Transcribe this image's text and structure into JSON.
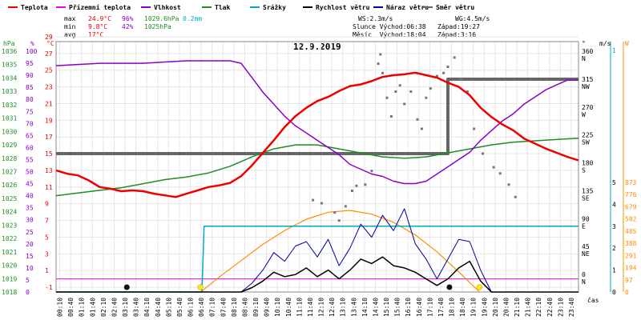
{
  "chart_data": {
    "type": "line",
    "title": "12.9.2019",
    "xlabel": "čas",
    "legend": [
      {
        "name": "Teplota",
        "color": "#ee0000"
      },
      {
        "name": "Přízemní teplota",
        "color": "#ee00ee"
      },
      {
        "name": "Vlhkost",
        "color": "#8a00c8"
      },
      {
        "name": "Tlak",
        "color": "#228b22"
      },
      {
        "name": "Srážky",
        "color": "#00a8c8"
      },
      {
        "name": "Rychlost větru",
        "color": "#000000"
      },
      {
        "name": "Náraz větru",
        "color": "#0000a0"
      },
      {
        "name": "Směr větru",
        "color": "#666666"
      }
    ],
    "stats": {
      "row1": [
        "max",
        "24.9°C",
        "96%",
        "1029.6hPa",
        "0.2mm"
      ],
      "row2": [
        "min",
        "9.8°C",
        "42%",
        "1025hPa"
      ],
      "row3": [
        "avg",
        "17°C"
      ]
    },
    "info": {
      "ws": "WS:2.3m/s",
      "wg": "WG:4.5m/s",
      "sun": "Slunce Východ:06:38   Západ:19:27",
      "moon": "Měsíc  Východ:18:04   Západ:3:16"
    },
    "axis_units": {
      "hpa": "hPa",
      "pct": "%",
      "degc": "°C",
      "deg": "°",
      "ms": "m/s",
      "wm2": "W"
    },
    "axes": {
      "hpa": [
        1018,
        1019,
        1020,
        1021,
        1022,
        1023,
        1024,
        1025,
        1026,
        1027,
        1028,
        1029,
        1030,
        1031,
        1032,
        1033,
        1034,
        1035,
        1036
      ],
      "pct": [
        0,
        5,
        10,
        15,
        20,
        25,
        30,
        35,
        40,
        45,
        50,
        55,
        60,
        65,
        70,
        75,
        80,
        85,
        90,
        95,
        100
      ],
      "degc": [
        -1,
        1,
        3,
        5,
        7,
        9,
        11,
        13,
        15,
        17,
        19,
        21,
        23,
        25,
        27,
        29
      ],
      "deg": [
        "0 N",
        "45 NE",
        "90 E",
        "135 SE",
        "180 S",
        "225 SW",
        "270 W",
        "315 NW",
        "360 N"
      ],
      "ms": [
        0,
        1,
        2,
        3,
        4,
        5
      ],
      "ms_top": "1",
      "wm2": [
        0,
        97,
        194,
        291,
        388,
        485,
        582,
        679,
        776,
        873
      ]
    },
    "x_ticks": [
      "00:10",
      "00:40",
      "01:10",
      "01:40",
      "02:10",
      "02:40",
      "03:10",
      "03:40",
      "04:10",
      "04:40",
      "05:10",
      "05:40",
      "06:10",
      "06:40",
      "07:10",
      "07:40",
      "08:10",
      "08:40",
      "09:10",
      "09:40",
      "10:10",
      "10:40",
      "11:10",
      "11:40",
      "12:10",
      "12:40",
      "13:10",
      "13:40",
      "14:10",
      "14:40",
      "15:10",
      "15:40",
      "16:10",
      "16:40",
      "17:10",
      "17:40",
      "18:10",
      "18:40",
      "19:10",
      "19:40",
      "20:10",
      "20:40",
      "21:10",
      "21:40",
      "22:10",
      "22:40",
      "23:10",
      "23:40"
    ],
    "series": {
      "temperature": {
        "x": [
          0,
          0.5,
          1,
          1.5,
          2,
          2.5,
          3,
          3.5,
          4,
          4.5,
          5,
          5.5,
          6,
          6.5,
          7,
          7.5,
          8,
          8.5,
          9,
          9.5,
          10,
          10.5,
          11,
          11.5,
          12,
          12.5,
          13,
          13.5,
          14,
          14.5,
          15,
          15.5,
          16,
          16.5,
          17,
          17.5,
          18,
          18.5,
          19,
          19.5,
          20,
          20.5,
          21,
          21.5,
          22,
          22.5,
          23,
          23.5,
          24
        ],
        "y": [
          13.0,
          12.6,
          12.4,
          11.8,
          11.0,
          10.8,
          10.5,
          10.6,
          10.5,
          10.2,
          10.0,
          9.8,
          10.2,
          10.6,
          11.0,
          11.2,
          11.5,
          12.3,
          13.6,
          15.1,
          16.6,
          18.2,
          19.5,
          20.5,
          21.3,
          21.8,
          22.5,
          23.1,
          23.3,
          23.7,
          24.2,
          24.4,
          24.5,
          24.7,
          24.4,
          24.1,
          23.5,
          23.0,
          22.0,
          20.5,
          19.4,
          18.5,
          17.8,
          16.8,
          16.2,
          15.6,
          15.1,
          14.6,
          14.2
        ]
      },
      "humidity": {
        "x": [
          0,
          1,
          2,
          3,
          4,
          5,
          6,
          7,
          8,
          8.5,
          9,
          9.5,
          10,
          10.5,
          11,
          11.5,
          12,
          12.5,
          13,
          13.5,
          14,
          14.5,
          15,
          15.5,
          16,
          16.5,
          17,
          17.5,
          18,
          18.5,
          19,
          19.5,
          20,
          20.5,
          21,
          21.5,
          22,
          22.5,
          23,
          23.5,
          24
        ],
        "y": [
          94,
          94.5,
          95,
          95,
          95,
          95.5,
          96,
          96,
          96,
          95,
          89,
          83,
          78,
          73,
          69,
          66,
          63,
          60,
          57,
          53,
          51,
          49,
          48,
          46,
          45,
          45,
          46,
          49,
          52,
          55,
          58,
          63,
          67,
          71,
          74,
          78,
          81,
          84,
          86,
          88,
          88
        ]
      },
      "pressure": {
        "x": [
          0,
          1,
          2,
          3,
          4,
          5,
          6,
          7,
          8,
          9,
          10,
          11,
          12,
          13,
          14,
          15,
          16,
          17,
          18,
          19,
          20,
          21,
          22,
          23,
          24
        ],
        "y": [
          1025.2,
          1025.4,
          1025.6,
          1025.8,
          1026.1,
          1026.4,
          1026.6,
          1026.9,
          1027.4,
          1028.1,
          1028.7,
          1029.0,
          1029.0,
          1028.7,
          1028.4,
          1028.1,
          1028.0,
          1028.1,
          1028.4,
          1028.7,
          1029.0,
          1029.2,
          1029.3,
          1029.4,
          1029.5
        ]
      },
      "rain": {
        "x": [
          0,
          6.7,
          6.8,
          24
        ],
        "y": [
          0,
          0,
          0.2,
          0.2
        ]
      },
      "solar": {
        "x": [
          6.64,
          7.5,
          8.5,
          9.5,
          10.5,
          11.5,
          12.5,
          13.5,
          14.5,
          15.5,
          16.5,
          17.5,
          18.5,
          19.45
        ],
        "y": [
          0,
          120,
          250,
          380,
          490,
          580,
          635,
          650,
          620,
          555,
          455,
          320,
          160,
          0
        ]
      },
      "wind_speed": {
        "x": [
          0,
          8.5,
          9,
          9.5,
          10,
          10.5,
          11,
          11.5,
          12,
          12.5,
          13,
          13.5,
          14,
          14.5,
          15,
          15.5,
          16,
          16.5,
          17,
          17.5,
          18,
          18.5,
          19,
          19.5,
          20,
          24
        ],
        "y": [
          0,
          0,
          0.2,
          0.5,
          0.9,
          0.7,
          0.8,
          1.1,
          0.7,
          1.0,
          0.6,
          1.0,
          1.5,
          1.3,
          1.6,
          1.2,
          1.1,
          0.9,
          0.6,
          0.3,
          0.6,
          1.1,
          1.4,
          0.5,
          0,
          0
        ]
      },
      "wind_gust": {
        "x": [
          0,
          8.5,
          9,
          9.5,
          10,
          10.5,
          11,
          11.5,
          12,
          12.5,
          13,
          13.5,
          14,
          14.5,
          15,
          15.5,
          16,
          16.5,
          17,
          17.5,
          18,
          18.5,
          19,
          19.5,
          20,
          24
        ],
        "y": [
          0,
          0,
          0.4,
          1.0,
          1.8,
          1.4,
          2.1,
          2.3,
          1.6,
          2.4,
          1.2,
          2.0,
          3.1,
          2.5,
          3.5,
          2.8,
          3.8,
          2.2,
          1.5,
          0.6,
          1.5,
          2.4,
          2.3,
          1.0,
          0,
          0
        ]
      },
      "wind_dir_avg": {
        "x": [
          0,
          13.5,
          13.5,
          18.0,
          18.0,
          24
        ],
        "y": [
          200,
          200,
          200,
          200,
          320,
          320
        ]
      },
      "wind_dir_points": [
        [
          11.8,
          125
        ],
        [
          12.2,
          120
        ],
        [
          12.8,
          105
        ],
        [
          13.0,
          92
        ],
        [
          13.3,
          115
        ],
        [
          13.6,
          140
        ],
        [
          13.8,
          148
        ],
        [
          14.2,
          150
        ],
        [
          14.5,
          172
        ],
        [
          14.8,
          345
        ],
        [
          14.9,
          360
        ],
        [
          15.0,
          330
        ],
        [
          15.2,
          290
        ],
        [
          15.4,
          260
        ],
        [
          15.6,
          300
        ],
        [
          15.8,
          310
        ],
        [
          16.0,
          280
        ],
        [
          16.3,
          300
        ],
        [
          16.6,
          255
        ],
        [
          16.8,
          240
        ],
        [
          17.0,
          290
        ],
        [
          17.2,
          305
        ],
        [
          17.5,
          325
        ],
        [
          17.8,
          330
        ],
        [
          18.0,
          340
        ],
        [
          18.3,
          355
        ],
        [
          18.6,
          320
        ],
        [
          18.9,
          300
        ],
        [
          19.2,
          240
        ],
        [
          19.6,
          200
        ],
        [
          20.1,
          178
        ],
        [
          20.4,
          168
        ],
        [
          20.8,
          150
        ],
        [
          21.1,
          130
        ]
      ]
    },
    "markers": {
      "moon": [
        3.25,
        18.07
      ],
      "sun": [
        6.63,
        19.45
      ]
    }
  }
}
